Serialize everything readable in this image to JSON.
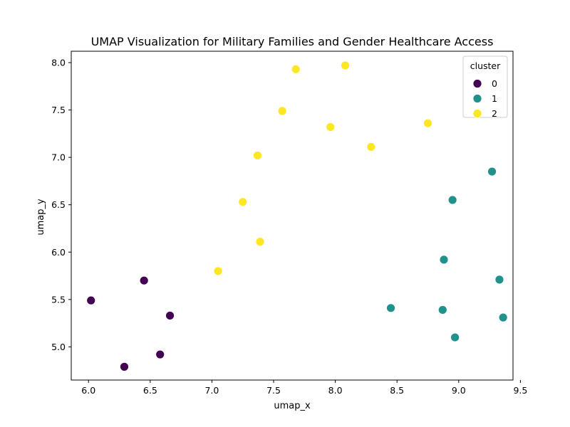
{
  "chart_data": {
    "type": "scatter",
    "title": "UMAP Visualization for Military Families and Gender Healthcare Access",
    "xlabel": "umap_x",
    "ylabel": "umap_y",
    "xlim": [
      5.86,
      9.44
    ],
    "ylim": [
      4.65,
      8.12
    ],
    "xticks": [
      "6.0",
      "6.5",
      "7.0",
      "7.5",
      "8.0",
      "8.5",
      "9.0",
      "9.5"
    ],
    "yticks": [
      "5.0",
      "5.5",
      "6.0",
      "6.5",
      "7.0",
      "7.5",
      "8.0"
    ],
    "grid": false,
    "legend": {
      "title": "cluster",
      "placement": "top-right"
    },
    "series": [
      {
        "name": "0",
        "color": "#440154",
        "points": [
          {
            "x": 6.02,
            "y": 5.49
          },
          {
            "x": 6.45,
            "y": 5.7
          },
          {
            "x": 6.66,
            "y": 5.33
          },
          {
            "x": 6.58,
            "y": 4.92
          },
          {
            "x": 6.29,
            "y": 4.79
          }
        ]
      },
      {
        "name": "1",
        "color": "#21918c",
        "points": [
          {
            "x": 9.27,
            "y": 6.85
          },
          {
            "x": 8.95,
            "y": 6.55
          },
          {
            "x": 8.88,
            "y": 5.92
          },
          {
            "x": 9.33,
            "y": 5.71
          },
          {
            "x": 8.45,
            "y": 5.41
          },
          {
            "x": 8.87,
            "y": 5.39
          },
          {
            "x": 9.36,
            "y": 5.31
          },
          {
            "x": 8.97,
            "y": 5.1
          }
        ]
      },
      {
        "name": "2",
        "color": "#fde725",
        "points": [
          {
            "x": 7.68,
            "y": 7.93
          },
          {
            "x": 8.08,
            "y": 7.97
          },
          {
            "x": 7.57,
            "y": 7.49
          },
          {
            "x": 7.96,
            "y": 7.32
          },
          {
            "x": 8.75,
            "y": 7.36
          },
          {
            "x": 8.29,
            "y": 7.11
          },
          {
            "x": 7.37,
            "y": 7.02
          },
          {
            "x": 7.25,
            "y": 6.53
          },
          {
            "x": 7.39,
            "y": 6.11
          },
          {
            "x": 7.05,
            "y": 5.8
          }
        ]
      }
    ]
  }
}
